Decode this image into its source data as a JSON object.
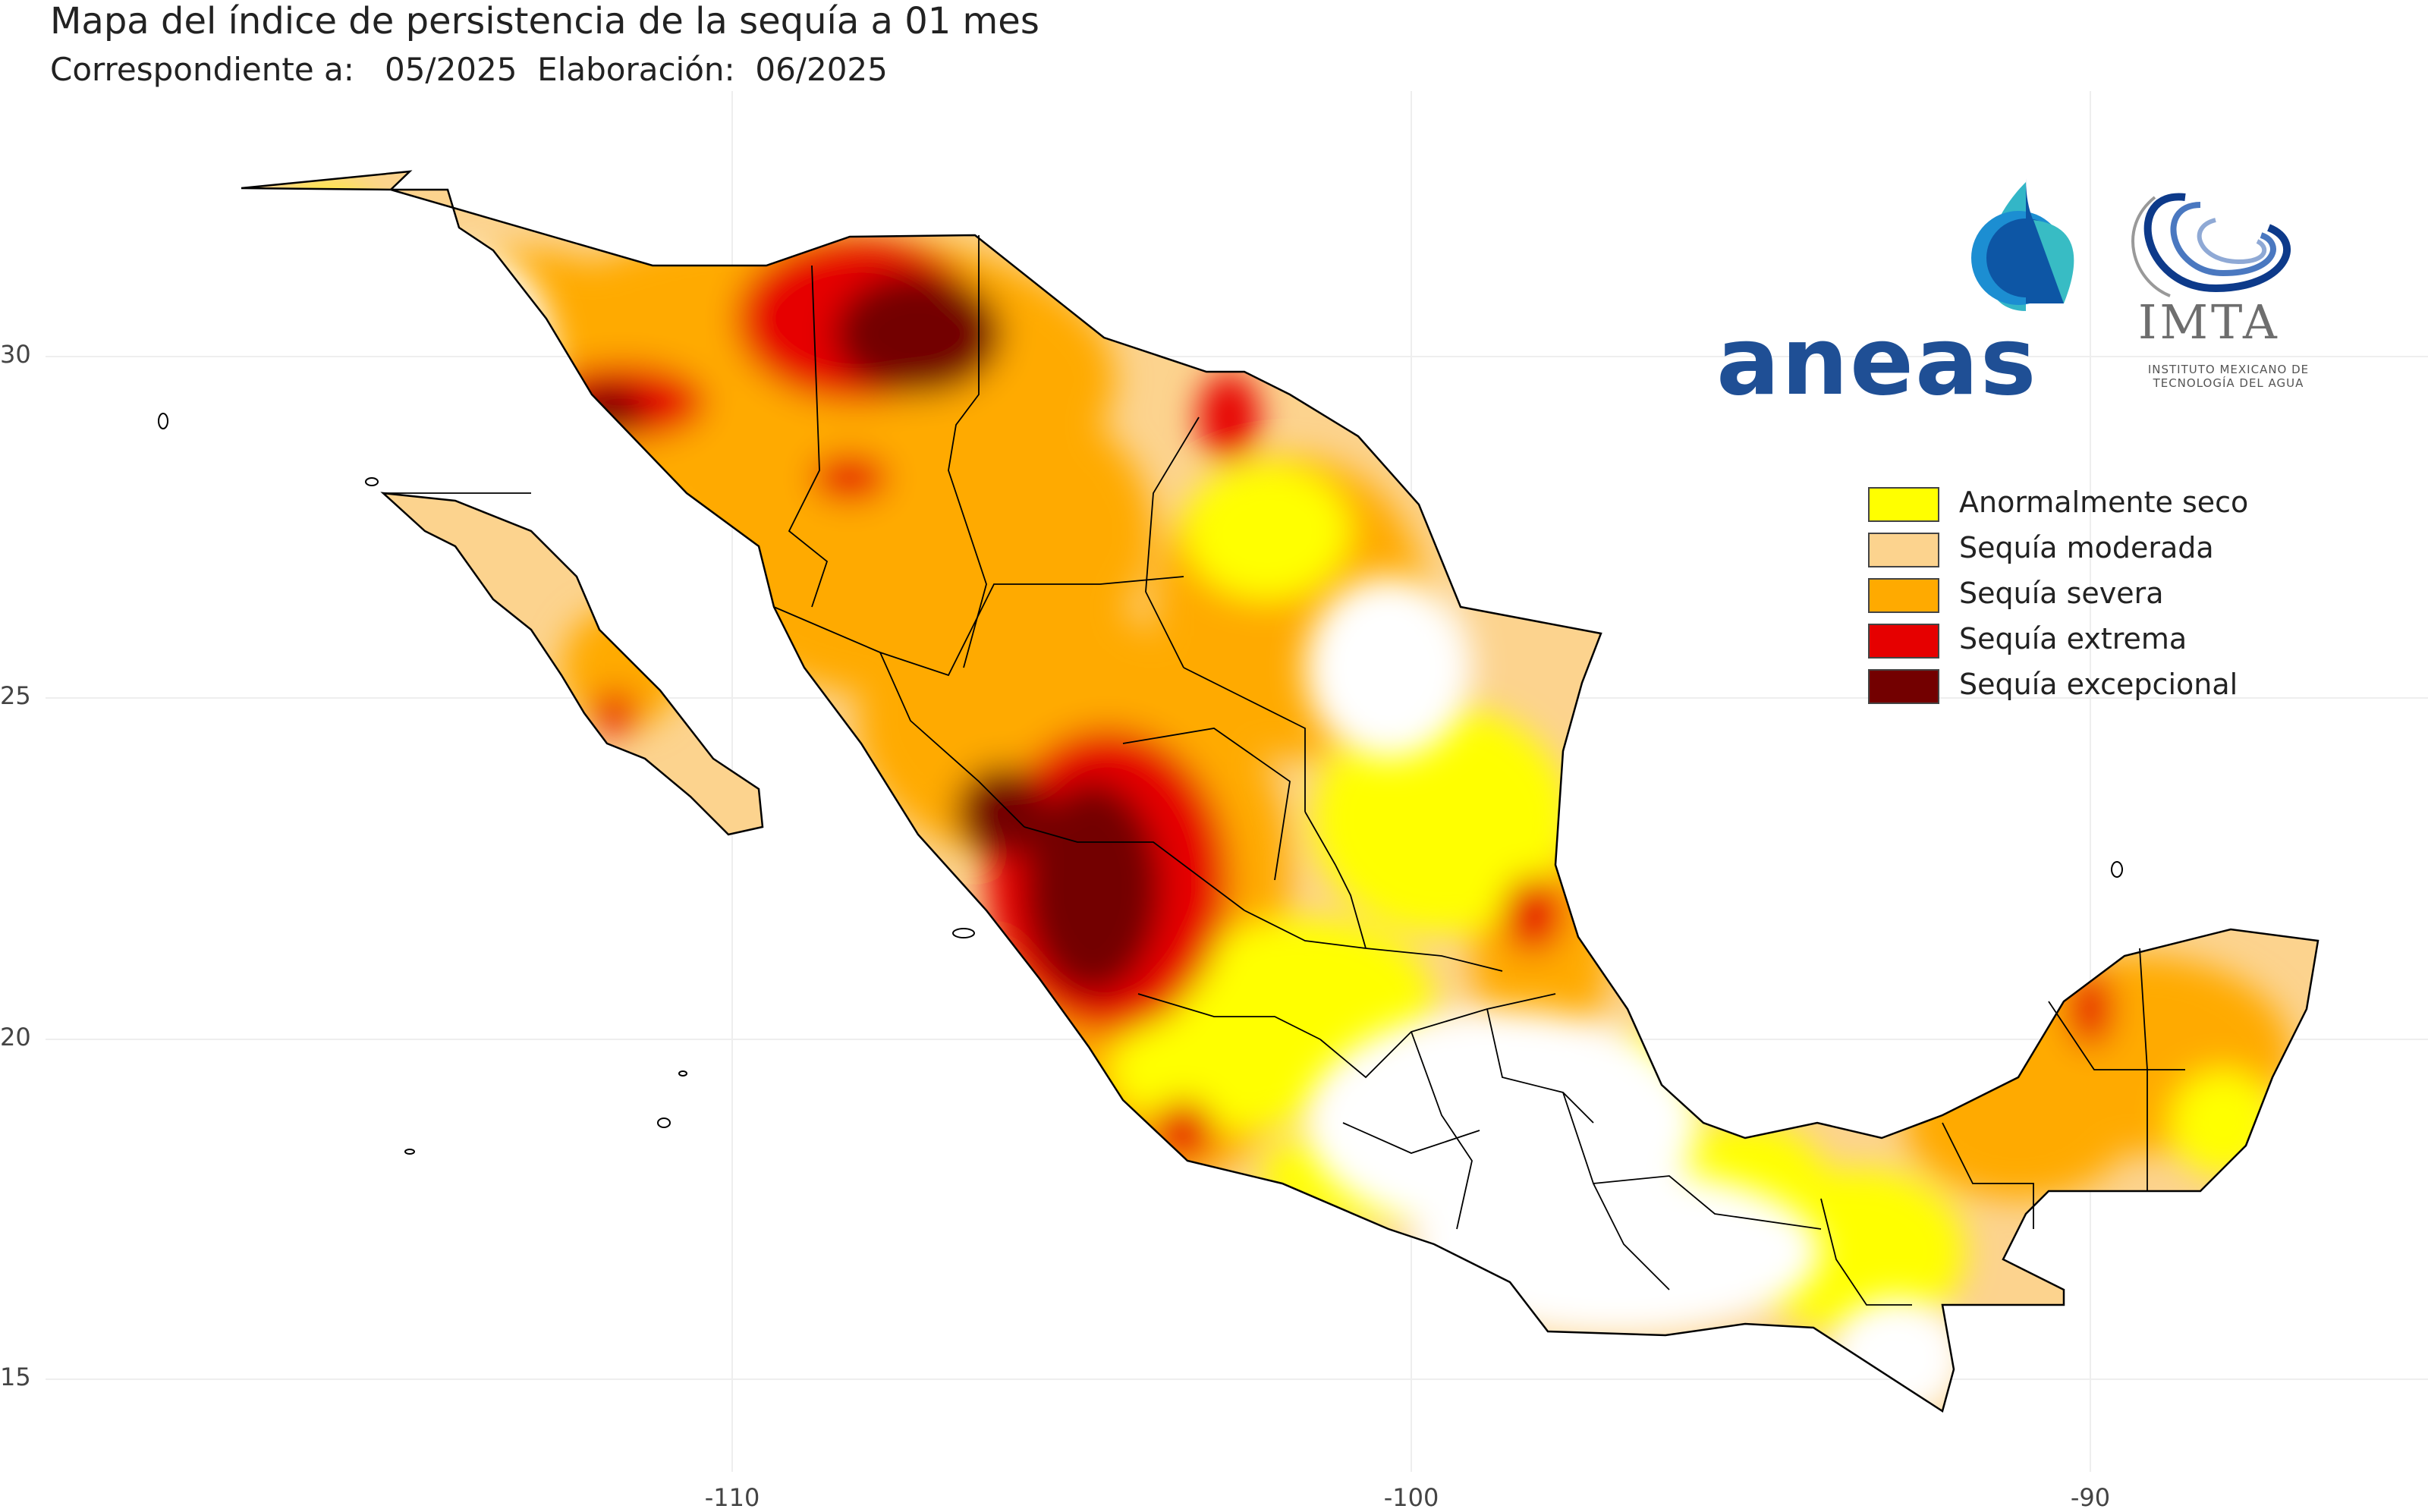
{
  "title": "Mapa del índice de persistencia de la sequía a  01 mes",
  "subtitle": "Correspondiente a:   05/2025  Elaboración:  06/2025",
  "logos": {
    "aneas": "aneas",
    "imta": "IMTA",
    "imta_sub": "INSTITUTO MEXICANO DE TECNOLOGÍA DEL AGUA"
  },
  "legend": [
    {
      "label": "Anormalmente seco",
      "color": "#ffff00"
    },
    {
      "label": "Sequía moderada",
      "color": "#fcd38e"
    },
    {
      "label": "Sequía severa",
      "color": "#ffaa00"
    },
    {
      "label": "Sequía extrema",
      "color": "#e60000"
    },
    {
      "label": "Sequía excepcional",
      "color": "#730000"
    }
  ],
  "axes": {
    "y_ticks": [
      "30",
      "25",
      "20",
      "15"
    ],
    "x_ticks": [
      "-110",
      "-100",
      "-90"
    ]
  }
}
